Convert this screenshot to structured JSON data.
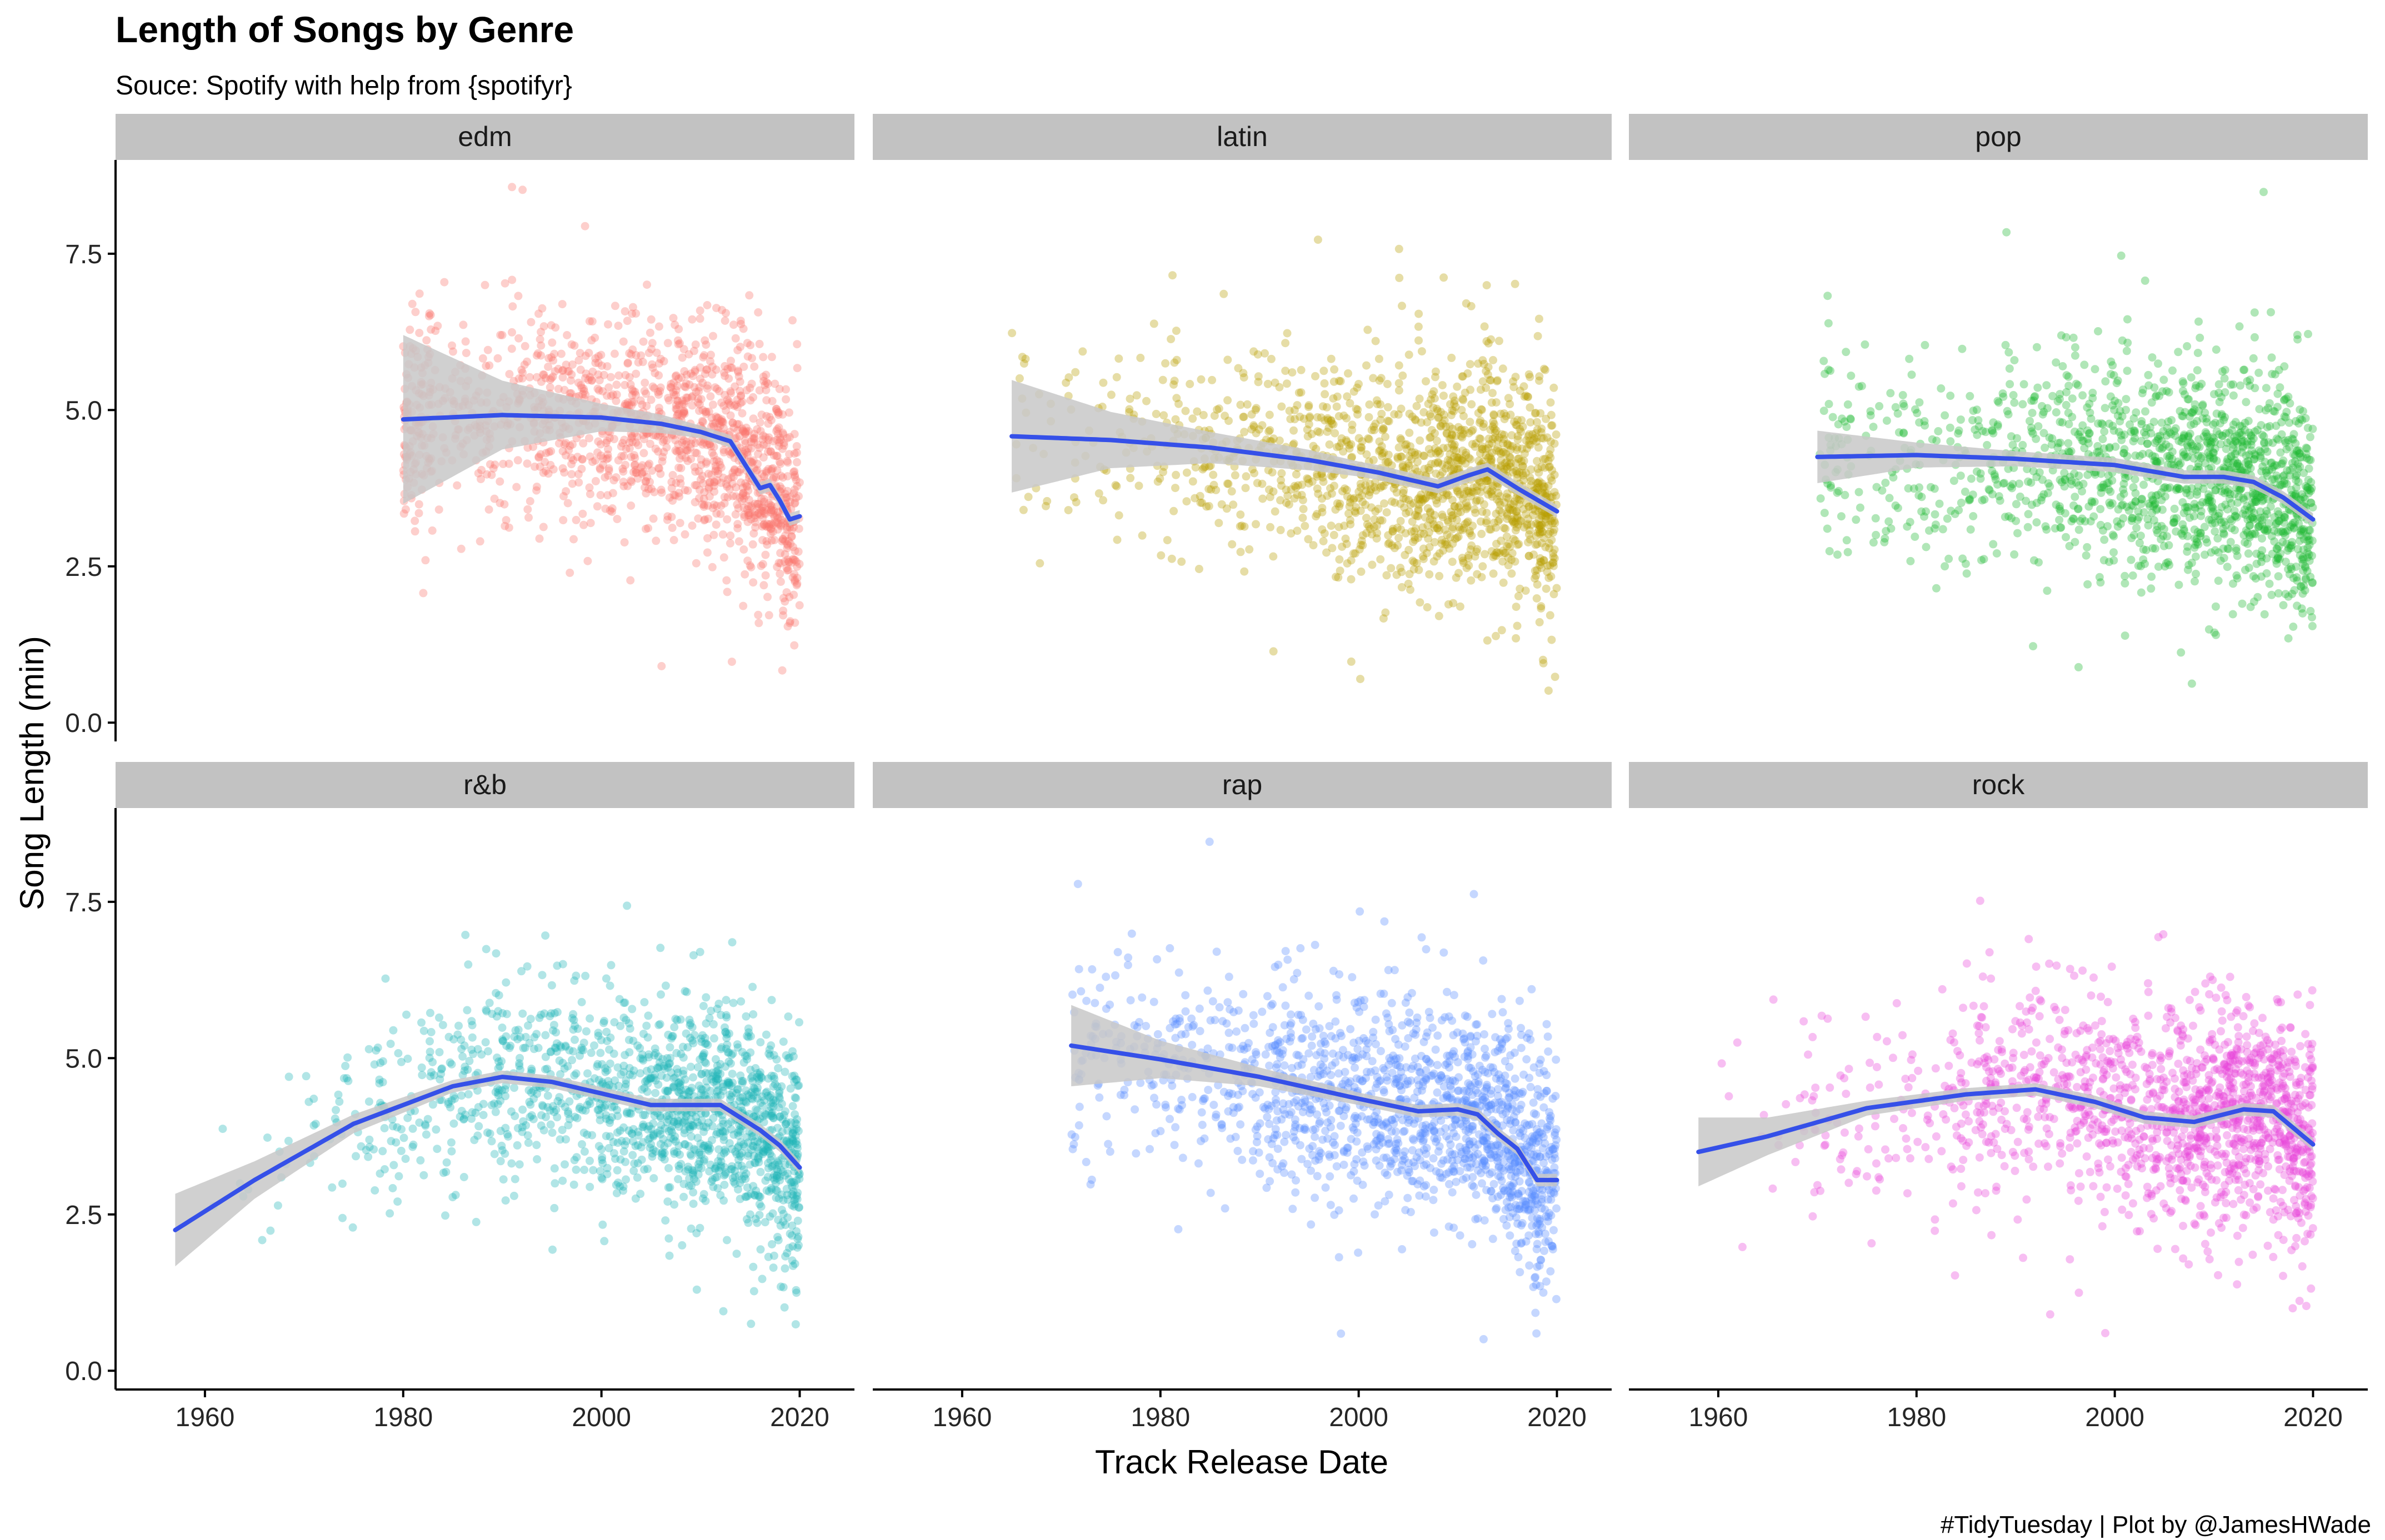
{
  "chart_data": {
    "type": "scatter",
    "title": "Length of Songs by Genre",
    "subtitle": "Souce: Spotify with help from {spotifyr}",
    "xlabel": "Track Release Date",
    "ylabel": "Song Length (min)",
    "caption": "#TidyTuesday | Plot by @JamesHWade",
    "xlim": [
      1953,
      2023
    ],
    "ylim": [
      -0.3,
      9.0
    ],
    "x_ticks": [
      1960,
      1980,
      2000,
      2020
    ],
    "y_ticks": [
      0.0,
      2.5,
      5.0,
      7.5
    ],
    "x_tick_labels": [
      "1960",
      "1980",
      "2000",
      "2020"
    ],
    "y_tick_labels": [
      "0.0",
      "2.5",
      "5.0",
      "7.5"
    ],
    "grid": false,
    "legend": "none",
    "smooth_color": "#3550e8",
    "ribbon_color": "#c8c8c8",
    "panels": [
      {
        "name": "edm",
        "color": "#f8766d",
        "x_start": 1980,
        "smooth": [
          [
            1980,
            4.85
          ],
          [
            1990,
            4.92
          ],
          [
            2000,
            4.88
          ],
          [
            2006,
            4.78
          ],
          [
            2010,
            4.65
          ],
          [
            2013,
            4.5
          ],
          [
            2015,
            4.0
          ],
          [
            2016,
            3.75
          ],
          [
            2017,
            3.8
          ],
          [
            2018,
            3.55
          ],
          [
            2019,
            3.25
          ],
          [
            2020,
            3.3
          ]
        ],
        "band": [
          [
            1980,
            1.35
          ],
          [
            1990,
            0.55
          ],
          [
            2000,
            0.22
          ],
          [
            2010,
            0.1
          ],
          [
            2020,
            0.1
          ]
        ]
      },
      {
        "name": "latin",
        "color": "#b79f00",
        "x_start": 1965,
        "smooth": [
          [
            1965,
            4.58
          ],
          [
            1975,
            4.52
          ],
          [
            1985,
            4.4
          ],
          [
            1995,
            4.2
          ],
          [
            2002,
            4.0
          ],
          [
            2008,
            3.78
          ],
          [
            2011,
            3.95
          ],
          [
            2013,
            4.05
          ],
          [
            2016,
            3.75
          ],
          [
            2020,
            3.38
          ]
        ],
        "band": [
          [
            1965,
            0.9
          ],
          [
            1975,
            0.45
          ],
          [
            1985,
            0.25
          ],
          [
            2000,
            0.12
          ],
          [
            2020,
            0.1
          ]
        ]
      },
      {
        "name": "pop",
        "color": "#1db832",
        "x_start": 1970,
        "smooth": [
          [
            1970,
            4.25
          ],
          [
            1980,
            4.28
          ],
          [
            1990,
            4.22
          ],
          [
            2000,
            4.12
          ],
          [
            2007,
            3.93
          ],
          [
            2011,
            3.93
          ],
          [
            2014,
            3.85
          ],
          [
            2017,
            3.6
          ],
          [
            2020,
            3.25
          ]
        ],
        "band": [
          [
            1970,
            0.42
          ],
          [
            1980,
            0.2
          ],
          [
            1990,
            0.12
          ],
          [
            2020,
            0.1
          ]
        ]
      },
      {
        "name": "r&b",
        "color": "#1fb5b8",
        "x_start": 1957,
        "smooth": [
          [
            1957,
            2.25
          ],
          [
            1965,
            3.05
          ],
          [
            1975,
            3.95
          ],
          [
            1985,
            4.55
          ],
          [
            1990,
            4.7
          ],
          [
            1995,
            4.62
          ],
          [
            2005,
            4.25
          ],
          [
            2012,
            4.25
          ],
          [
            2016,
            3.85
          ],
          [
            2018,
            3.6
          ],
          [
            2020,
            3.25
          ]
        ],
        "band": [
          [
            1957,
            0.58
          ],
          [
            1965,
            0.3
          ],
          [
            1975,
            0.15
          ],
          [
            1985,
            0.1
          ],
          [
            2020,
            0.1
          ]
        ]
      },
      {
        "name": "rap",
        "color": "#5a8cff",
        "x_start": 1971,
        "smooth": [
          [
            1971,
            5.2
          ],
          [
            1980,
            4.98
          ],
          [
            1990,
            4.7
          ],
          [
            2000,
            4.35
          ],
          [
            2006,
            4.15
          ],
          [
            2010,
            4.18
          ],
          [
            2012,
            4.1
          ],
          [
            2014,
            3.8
          ],
          [
            2016,
            3.55
          ],
          [
            2018,
            3.05
          ],
          [
            2020,
            3.05
          ]
        ],
        "band": [
          [
            1971,
            0.65
          ],
          [
            1980,
            0.3
          ],
          [
            1990,
            0.15
          ],
          [
            2000,
            0.1
          ],
          [
            2020,
            0.1
          ]
        ]
      },
      {
        "name": "rock",
        "color": "#e945d9",
        "x_start": 1958,
        "smooth": [
          [
            1958,
            3.5
          ],
          [
            1965,
            3.75
          ],
          [
            1975,
            4.2
          ],
          [
            1985,
            4.42
          ],
          [
            1992,
            4.5
          ],
          [
            1998,
            4.3
          ],
          [
            2003,
            4.05
          ],
          [
            2008,
            3.98
          ],
          [
            2013,
            4.18
          ],
          [
            2016,
            4.15
          ],
          [
            2020,
            3.62
          ]
        ],
        "band": [
          [
            1958,
            0.55
          ],
          [
            1965,
            0.3
          ],
          [
            1975,
            0.12
          ],
          [
            1985,
            0.1
          ],
          [
            2020,
            0.1
          ]
        ]
      }
    ]
  }
}
